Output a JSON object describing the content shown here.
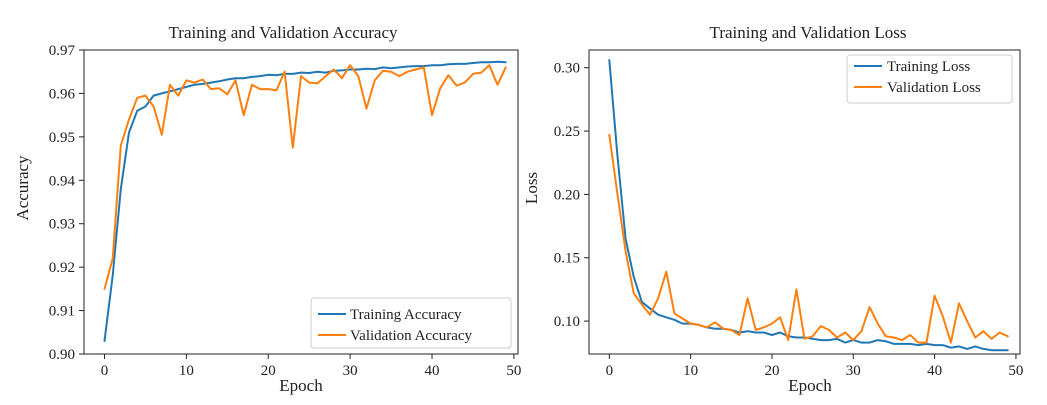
{
  "chart_data": [
    {
      "type": "line",
      "title": "Training and Validation Accuracy",
      "xlabel": "Epoch",
      "ylabel": "Accuracy",
      "xlim": [
        -2.5,
        50.5
      ],
      "ylim": [
        0.9,
        0.97
      ],
      "xticks": [
        0,
        10,
        20,
        30,
        40,
        50
      ],
      "xtick_labels": [
        "0",
        "10",
        "20",
        "30",
        "40",
        "50"
      ],
      "yticks": [
        0.9,
        0.91,
        0.92,
        0.93,
        0.94,
        0.95,
        0.96,
        0.97
      ],
      "ytick_labels": [
        "0.90",
        "0.91",
        "0.92",
        "0.93",
        "0.94",
        "0.95",
        "0.96",
        "0.97"
      ],
      "grid": false,
      "legend_position": "bottom-right",
      "x": [
        0,
        1,
        2,
        3,
        4,
        5,
        6,
        7,
        8,
        9,
        10,
        11,
        12,
        13,
        14,
        15,
        16,
        17,
        18,
        19,
        20,
        21,
        22,
        23,
        24,
        25,
        26,
        27,
        28,
        29,
        30,
        31,
        32,
        33,
        34,
        35,
        36,
        37,
        38,
        39,
        40,
        41,
        42,
        43,
        44,
        45,
        46,
        47,
        48,
        49
      ],
      "series": [
        {
          "name": "Training Accuracy",
          "color": "#1f77b4",
          "values": [
            0.903,
            0.918,
            0.938,
            0.951,
            0.956,
            0.957,
            0.9595,
            0.96,
            0.9605,
            0.961,
            0.9615,
            0.962,
            0.9622,
            0.9625,
            0.9628,
            0.9632,
            0.9635,
            0.9635,
            0.9638,
            0.964,
            0.9643,
            0.9642,
            0.9645,
            0.9645,
            0.9648,
            0.9647,
            0.965,
            0.9648,
            0.9652,
            0.9653,
            0.9655,
            0.9655,
            0.9657,
            0.9656,
            0.966,
            0.9658,
            0.966,
            0.9662,
            0.9663,
            0.9663,
            0.9665,
            0.9665,
            0.9667,
            0.9668,
            0.9668,
            0.967,
            0.9672,
            0.9672,
            0.9673,
            0.9672
          ]
        },
        {
          "name": "Validation Accuracy",
          "color": "#ff7f0e",
          "values": [
            0.915,
            0.922,
            0.948,
            0.954,
            0.959,
            0.9595,
            0.957,
            0.9505,
            0.962,
            0.9595,
            0.963,
            0.9625,
            0.9632,
            0.961,
            0.9612,
            0.9598,
            0.963,
            0.955,
            0.962,
            0.961,
            0.961,
            0.9607,
            0.965,
            0.9475,
            0.964,
            0.9625,
            0.9623,
            0.964,
            0.9655,
            0.9635,
            0.9665,
            0.964,
            0.9565,
            0.963,
            0.9652,
            0.965,
            0.964,
            0.965,
            0.9655,
            0.966,
            0.955,
            0.9612,
            0.9642,
            0.9618,
            0.9625,
            0.9645,
            0.9648,
            0.9665,
            0.962,
            0.966
          ]
        }
      ]
    },
    {
      "type": "line",
      "title": "Training and Validation Loss",
      "xlabel": "Epoch",
      "ylabel": "Loss",
      "xlim": [
        -2.5,
        50.5
      ],
      "ylim": [
        0.074,
        0.314
      ],
      "xticks": [
        0,
        10,
        20,
        30,
        40,
        50
      ],
      "xtick_labels": [
        "0",
        "10",
        "20",
        "30",
        "40",
        "50"
      ],
      "yticks": [
        0.1,
        0.15,
        0.2,
        0.25,
        0.3
      ],
      "ytick_labels": [
        "0.10",
        "0.15",
        "0.20",
        "0.25",
        "0.30"
      ],
      "grid": false,
      "legend_position": "top-right",
      "x": [
        0,
        1,
        2,
        3,
        4,
        5,
        6,
        7,
        8,
        9,
        10,
        11,
        12,
        13,
        14,
        15,
        16,
        17,
        18,
        19,
        20,
        21,
        22,
        23,
        24,
        25,
        26,
        27,
        28,
        29,
        30,
        31,
        32,
        33,
        34,
        35,
        36,
        37,
        38,
        39,
        40,
        41,
        42,
        43,
        44,
        45,
        46,
        47,
        48,
        49
      ],
      "series": [
        {
          "name": "Training Loss",
          "color": "#1f77b4",
          "values": [
            0.306,
            0.23,
            0.165,
            0.135,
            0.115,
            0.11,
            0.105,
            0.103,
            0.101,
            0.098,
            0.098,
            0.097,
            0.095,
            0.094,
            0.094,
            0.093,
            0.091,
            0.092,
            0.091,
            0.091,
            0.089,
            0.091,
            0.088,
            0.087,
            0.087,
            0.086,
            0.085,
            0.085,
            0.086,
            0.083,
            0.085,
            0.083,
            0.083,
            0.085,
            0.084,
            0.082,
            0.082,
            0.082,
            0.081,
            0.082,
            0.081,
            0.081,
            0.079,
            0.08,
            0.078,
            0.08,
            0.078,
            0.077,
            0.077,
            0.077
          ]
        },
        {
          "name": "Validation Loss",
          "color": "#ff7f0e",
          "values": [
            0.247,
            0.2,
            0.155,
            0.122,
            0.113,
            0.105,
            0.118,
            0.139,
            0.106,
            0.102,
            0.098,
            0.097,
            0.095,
            0.099,
            0.094,
            0.093,
            0.089,
            0.118,
            0.093,
            0.095,
            0.098,
            0.103,
            0.085,
            0.125,
            0.086,
            0.088,
            0.096,
            0.093,
            0.087,
            0.091,
            0.085,
            0.092,
            0.111,
            0.098,
            0.088,
            0.087,
            0.085,
            0.089,
            0.083,
            0.083,
            0.12,
            0.104,
            0.083,
            0.114,
            0.1,
            0.087,
            0.092,
            0.086,
            0.091,
            0.088
          ]
        }
      ]
    }
  ]
}
